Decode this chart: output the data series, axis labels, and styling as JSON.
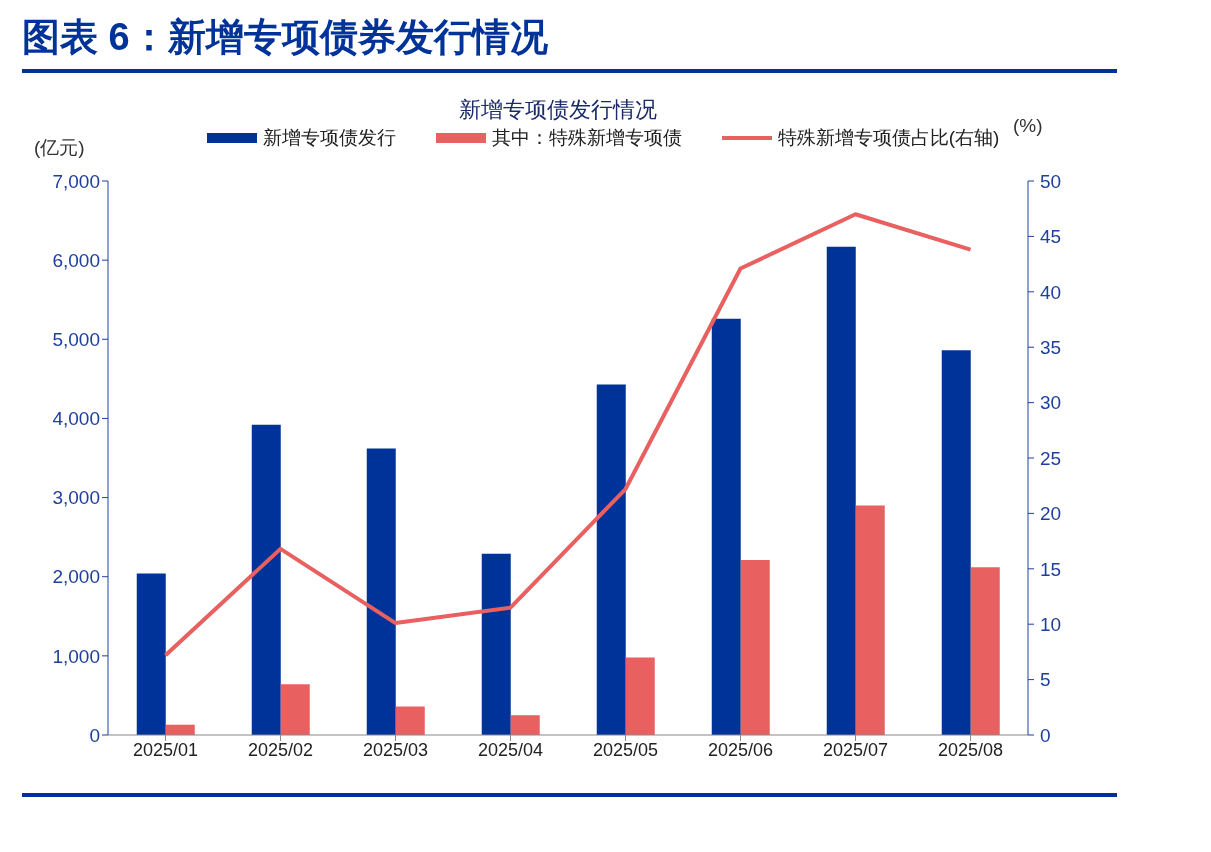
{
  "chart_data": {
    "type": "bar",
    "title": "图表 6：新增专项债券发行情况",
    "subtitle": "新增专项债发行情况",
    "ylabel": "(亿元)",
    "y2label": "(%)",
    "categories": [
      "2025/01",
      "2025/02",
      "2025/03",
      "2025/04",
      "2025/05",
      "2025/06",
      "2025/07",
      "2025/08"
    ],
    "series": [
      {
        "name": "新增专项债发行",
        "color": "#003399",
        "values": [
          2040,
          3920,
          3620,
          2290,
          4430,
          5260,
          6170,
          4860
        ]
      },
      {
        "name": "其中：特殊新增专项债",
        "color": "#e86060",
        "values": [
          130,
          640,
          360,
          250,
          980,
          2210,
          2900,
          2120
        ]
      },
      {
        "type": "line",
        "name": "特殊新增专项债占比(右轴)",
        "color": "#e86060",
        "axis": "y2",
        "values": [
          7.2,
          16.8,
          10.1,
          11.5,
          22.2,
          42.1,
          47.0,
          43.8
        ]
      }
    ],
    "ylim": [
      0,
      7000
    ],
    "yticks": [
      {
        "value": 0,
        "label": "0"
      },
      {
        "value": 1000,
        "label": "1,000"
      },
      {
        "value": 2000,
        "label": "2,000"
      },
      {
        "value": 3000,
        "label": "3,000"
      },
      {
        "value": 4000,
        "label": "4,000"
      },
      {
        "value": 5000,
        "label": "5,000"
      },
      {
        "value": 6000,
        "label": "6,000"
      },
      {
        "value": 7000,
        "label": "7,000"
      }
    ],
    "y2lim": [
      0,
      50
    ],
    "y2ticks": [
      0,
      5,
      10,
      15,
      20,
      25,
      30,
      35,
      40,
      45,
      50
    ],
    "legend": "top",
    "grid": false,
    "marker": "none"
  }
}
